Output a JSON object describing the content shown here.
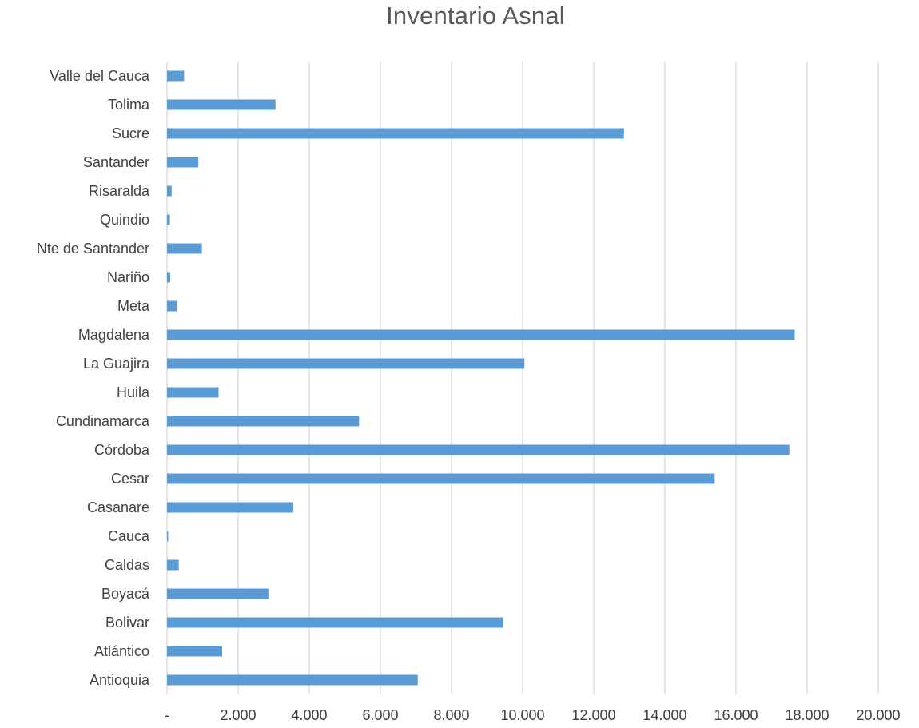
{
  "chart_data": {
    "type": "bar",
    "orientation": "horizontal",
    "title": "Inventario Asnal",
    "xlabel": "",
    "ylabel": "",
    "xlim": [
      0,
      20000
    ],
    "grid": true,
    "legend": "none",
    "bar_color": "#5B9BD5",
    "grid_color": "#D9D9D9",
    "x_ticks": [
      "-",
      "2.000",
      "4.000",
      "6.000",
      "8.000",
      "10.000",
      "12.000",
      "14.000",
      "16.000",
      "18.000",
      "20.000"
    ],
    "categories": [
      "Antioquia",
      "Atlántico",
      "Bolivar",
      "Boyacá",
      "Caldas",
      "Cauca",
      "Casanare",
      "Cesar",
      "Córdoba",
      "Cundinamarca",
      "Huila",
      "La Guajira",
      "Magdalena",
      "Meta",
      "Nariño",
      "Nte de Santander",
      "Quindio",
      "Risaralda",
      "Santander",
      "Sucre",
      "Tolima",
      "Valle del Cauca"
    ],
    "values": [
      7050,
      1550,
      9450,
      2850,
      330,
      30,
      3550,
      15400,
      17500,
      5400,
      1450,
      10050,
      17650,
      270,
      90,
      980,
      80,
      130,
      880,
      12850,
      3050,
      480
    ]
  }
}
